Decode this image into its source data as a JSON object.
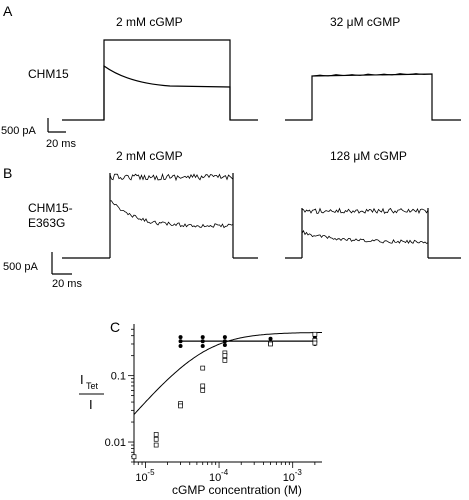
{
  "panel_a": {
    "letter": "A",
    "left_label": "2 mM cGMP",
    "right_label": "32 μM cGMP",
    "row_label": "CHM15",
    "scale_current": "500 pA",
    "scale_time": "20 ms"
  },
  "panel_b": {
    "letter": "B",
    "left_label": "2 mM cGMP",
    "right_label": "128 μM cGMP",
    "row_label_line1": "CHM15-",
    "row_label_line2": "E363G",
    "scale_current": "500 pA",
    "scale_time": "20 ms"
  },
  "panel_c": {
    "letter": "C",
    "y_label_main": "I",
    "y_label_sub": "Tet",
    "y_label_denominator": "I",
    "x_label": "cGMP concentration (M)"
  },
  "chart_data": {
    "type": "scatter",
    "xscale": "log",
    "yscale": "log",
    "xlabel": "cGMP concentration (M)",
    "ylabel": "I_Tet / I",
    "xlim": [
      7e-06,
      0.0025
    ],
    "ylim": [
      0.005,
      0.6
    ],
    "x_ticks": [
      {
        "value": 1e-05,
        "label": "10",
        "exp": "-5"
      },
      {
        "value": 0.0001,
        "label": "10",
        "exp": "-4"
      },
      {
        "value": 0.001,
        "label": "10",
        "exp": "-3"
      }
    ],
    "y_ticks": [
      {
        "value": 0.01,
        "label": "0.01"
      },
      {
        "value": 0.1,
        "label": "0.1"
      }
    ],
    "series": [
      {
        "marker": "filled-circle",
        "line": "flat",
        "x": [
          3e-05,
          3e-05,
          3e-05,
          6e-05,
          6e-05,
          6e-05,
          0.00012,
          0.00012,
          0.00012,
          0.0005,
          0.0005,
          0.002,
          0.002,
          0.002
        ],
        "y": [
          0.38,
          0.33,
          0.28,
          0.38,
          0.33,
          0.28,
          0.38,
          0.33,
          0.29,
          0.36,
          0.31,
          0.38,
          0.33,
          0.3
        ]
      },
      {
        "marker": "open-square",
        "line": "fit",
        "x": [
          7e-06,
          1.4e-05,
          1.4e-05,
          1.4e-05,
          3e-05,
          3e-05,
          6e-05,
          6e-05,
          6e-05,
          0.00012,
          0.00012,
          0.00012,
          0.0005,
          0.0005,
          0.002,
          0.002,
          0.002
        ],
        "y": [
          0.006,
          0.013,
          0.011,
          0.009,
          0.038,
          0.035,
          0.13,
          0.07,
          0.06,
          0.22,
          0.2,
          0.17,
          0.31,
          0.3,
          0.42,
          0.34,
          0.31
        ]
      }
    ],
    "fit_curve": {
      "k": 6e-05,
      "n": 1.3,
      "max": 0.45
    }
  }
}
